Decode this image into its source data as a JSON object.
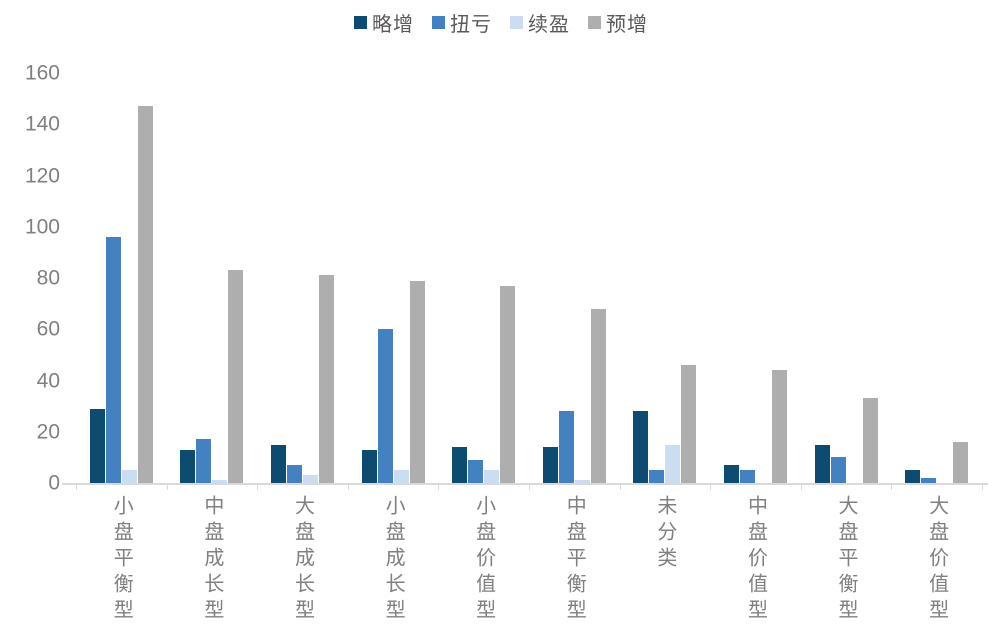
{
  "chart_data": {
    "type": "bar",
    "title": "",
    "xlabel": "",
    "ylabel": "",
    "categories": [
      "小盘平衡型",
      "中盘成长型",
      "大盘成长型",
      "小盘成长型",
      "小盘价值型",
      "中盘平衡型",
      "未分类",
      "中盘价值型",
      "大盘平衡型",
      "大盘价值型"
    ],
    "series": [
      {
        "name": "略增",
        "color": "#0E4B71",
        "values": [
          29,
          13,
          15,
          13,
          14,
          14,
          28,
          7,
          15,
          5
        ]
      },
      {
        "name": "扭亏",
        "color": "#4381C1",
        "values": [
          96,
          17,
          7,
          60,
          9,
          28,
          5,
          5,
          10,
          2
        ]
      },
      {
        "name": "续盈",
        "color": "#CBDEF1",
        "values": [
          5,
          1,
          3,
          5,
          5,
          1,
          15,
          0,
          0,
          0
        ]
      },
      {
        "name": "预增",
        "color": "#AEAEAE",
        "values": [
          147,
          83,
          81,
          79,
          77,
          68,
          46,
          44,
          33,
          16
        ]
      }
    ],
    "ylim": [
      0,
      160
    ],
    "yticks": [
      0,
      20,
      40,
      60,
      80,
      100,
      120,
      140,
      160
    ],
    "grid": false,
    "legend_position": "top",
    "colors": {
      "axis_label": "#808080",
      "legend_text": "#595959",
      "axis_line": "#D9D9D9",
      "background": "#FFFFFF"
    }
  }
}
